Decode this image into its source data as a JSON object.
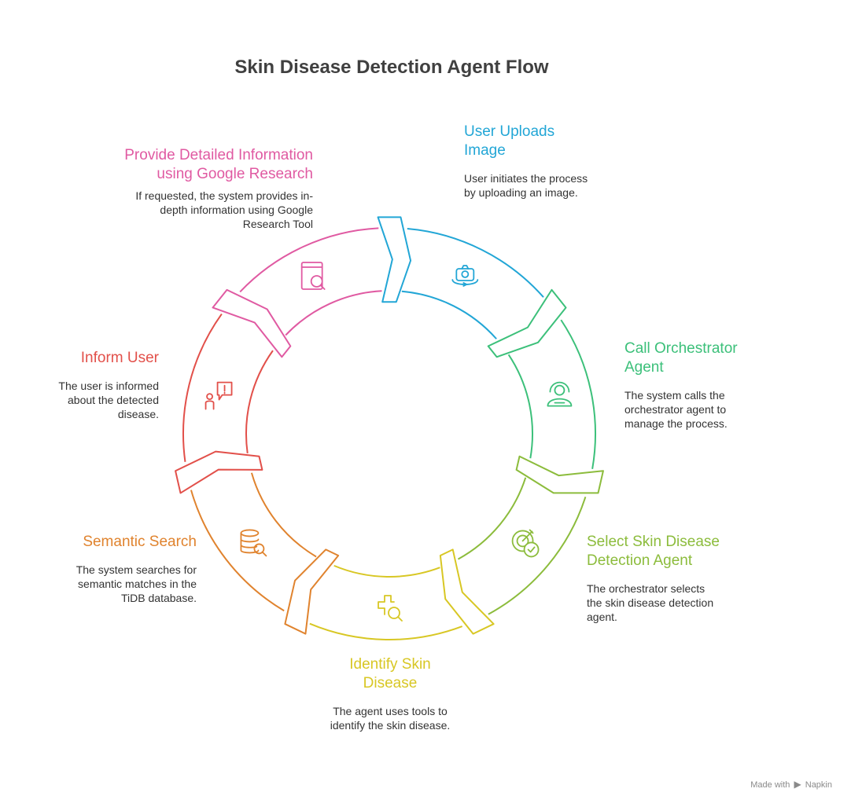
{
  "title": "Skin Disease Detection Agent Flow",
  "steps": [
    {
      "id": "upload",
      "title": "User Uploads Image",
      "description": "User initiates the process by uploading an image.",
      "icon": "camera-rotate-icon",
      "color": "#22a6d6"
    },
    {
      "id": "orchestrator",
      "title": "Call Orchestrator Agent",
      "description": "The system calls the orchestrator agent to manage the process.",
      "icon": "support-agent-icon",
      "color": "#3cc07a"
    },
    {
      "id": "select",
      "title": "Select Skin Disease Detection Agent",
      "description": "The orchestrator selects the skin disease detection agent.",
      "icon": "target-check-icon",
      "color": "#8cbc3c"
    },
    {
      "id": "identify",
      "title": "Identify Skin Disease",
      "description": "The agent uses tools to identify the skin disease.",
      "icon": "medical-search-icon",
      "color": "#d8c724"
    },
    {
      "id": "search",
      "title": "Semantic Search",
      "description": "The system searches for semantic matches in the TiDB database.",
      "icon": "database-search-icon",
      "color": "#e0832e"
    },
    {
      "id": "inform",
      "title": "Inform User",
      "description": "The user is informed about the detected disease.",
      "icon": "user-alert-icon",
      "color": "#e2504a"
    },
    {
      "id": "research",
      "title": "Provide Detailed Information using Google Research",
      "description": "If requested, the system provides in-depth information using Google Research Tool",
      "icon": "book-search-icon",
      "color": "#e05aa2"
    }
  ],
  "footer": {
    "made_with": "Made with",
    "brand": "Napkin"
  }
}
